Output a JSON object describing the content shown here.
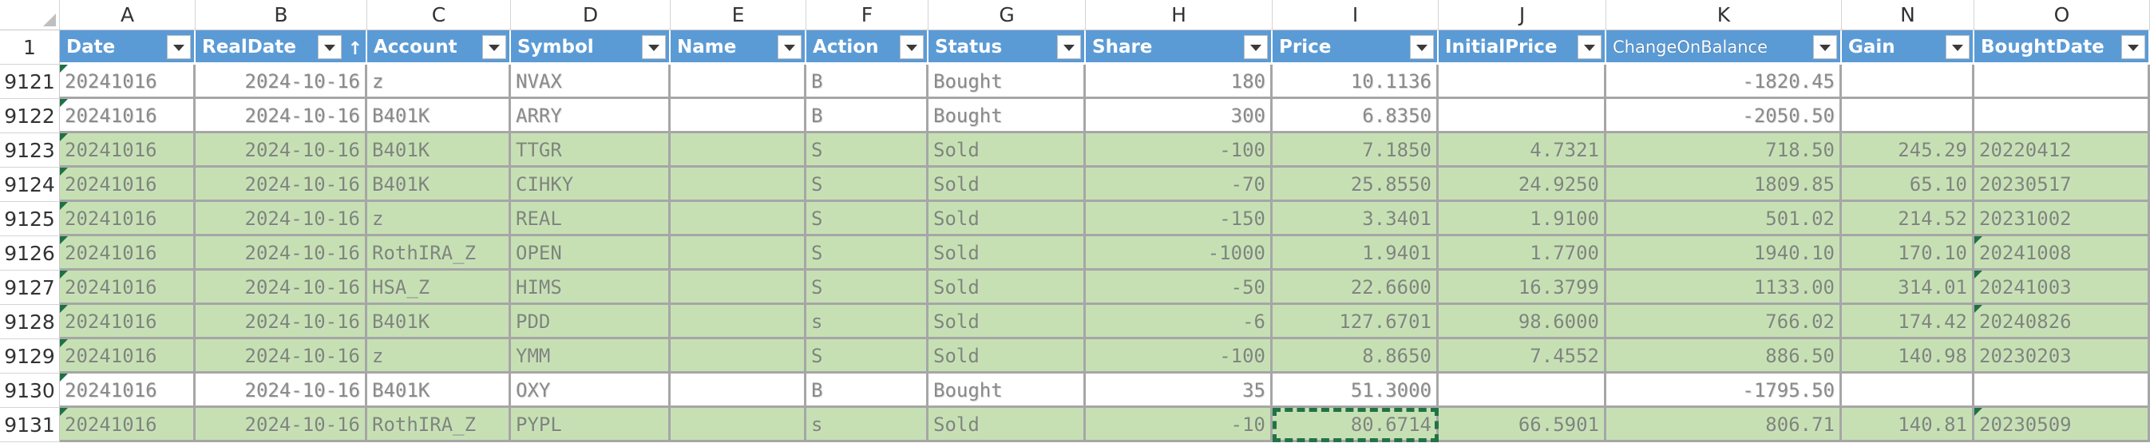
{
  "column_letters": [
    "A",
    "B",
    "C",
    "D",
    "E",
    "F",
    "G",
    "H",
    "I",
    "J",
    "K",
    "N",
    "O"
  ],
  "header_row_number": "1",
  "fields": [
    "Date",
    "RealDate",
    "Account",
    "Symbol",
    "Name",
    "Action",
    "Status",
    "Share",
    "Price",
    "InitialPrice",
    "ChangeOnBalance",
    "Gain",
    "BoughtDate"
  ],
  "rows": [
    {
      "num": "9121",
      "cells": [
        "20241016",
        "2024-10-16",
        "z",
        "NVAX",
        "",
        "B",
        "Bought",
        "180",
        "10.1136",
        "",
        "-1820.45",
        "",
        ""
      ],
      "green": false
    },
    {
      "num": "9122",
      "cells": [
        "20241016",
        "2024-10-16",
        "B401K",
        "ARRY",
        "",
        "B",
        "Bought",
        "300",
        "6.8350",
        "",
        "-2050.50",
        "",
        ""
      ],
      "green": false
    },
    {
      "num": "9123",
      "cells": [
        "20241016",
        "2024-10-16",
        "B401K",
        "TTGR",
        "",
        "S",
        "Sold",
        "-100",
        "7.1850",
        "4.7321",
        "718.50",
        "245.29",
        "20220412"
      ],
      "green": true
    },
    {
      "num": "9124",
      "cells": [
        "20241016",
        "2024-10-16",
        "B401K",
        "CIHKY",
        "",
        "S",
        "Sold",
        "-70",
        "25.8550",
        "24.9250",
        "1809.85",
        "65.10",
        "20230517"
      ],
      "green": true
    },
    {
      "num": "9125",
      "cells": [
        "20241016",
        "2024-10-16",
        "z",
        "REAL",
        "",
        "S",
        "Sold",
        "-150",
        "3.3401",
        "1.9100",
        "501.02",
        "214.52",
        "20231002"
      ],
      "green": true
    },
    {
      "num": "9126",
      "cells": [
        "20241016",
        "2024-10-16",
        "RothIRA_Z",
        "OPEN",
        "",
        "S",
        "Sold",
        "-1000",
        "1.9401",
        "1.7700",
        "1940.10",
        "170.10",
        "20241008"
      ],
      "green": true
    },
    {
      "num": "9127",
      "cells": [
        "20241016",
        "2024-10-16",
        "HSA_Z",
        "HIMS",
        "",
        "S",
        "Sold",
        "-50",
        "22.6600",
        "16.3799",
        "1133.00",
        "314.01",
        "20241003"
      ],
      "green": true
    },
    {
      "num": "9128",
      "cells": [
        "20241016",
        "2024-10-16",
        "B401K",
        "PDD",
        "",
        "s",
        "Sold",
        "-6",
        "127.6701",
        "98.6000",
        "766.02",
        "174.42",
        "20240826"
      ],
      "green": true
    },
    {
      "num": "9129",
      "cells": [
        "20241016",
        "2024-10-16",
        "z",
        "YMM",
        "",
        "S",
        "Sold",
        "-100",
        "8.8650",
        "7.4552",
        "886.50",
        "140.98",
        "20230203"
      ],
      "green": true
    },
    {
      "num": "9130",
      "cells": [
        "20241016",
        "2024-10-16",
        "B401K",
        "OXY",
        "",
        "B",
        "Bought",
        "35",
        "51.3000",
        "",
        "-1795.50",
        "",
        ""
      ],
      "green": false
    },
    {
      "num": "9131",
      "cells": [
        "20241016",
        "2024-10-16",
        "RothIRA_Z",
        "PYPL",
        "",
        "s",
        "Sold",
        "-10",
        "80.6714",
        "66.5901",
        "806.71",
        "140.81",
        "20230509"
      ],
      "green": true
    }
  ]
}
